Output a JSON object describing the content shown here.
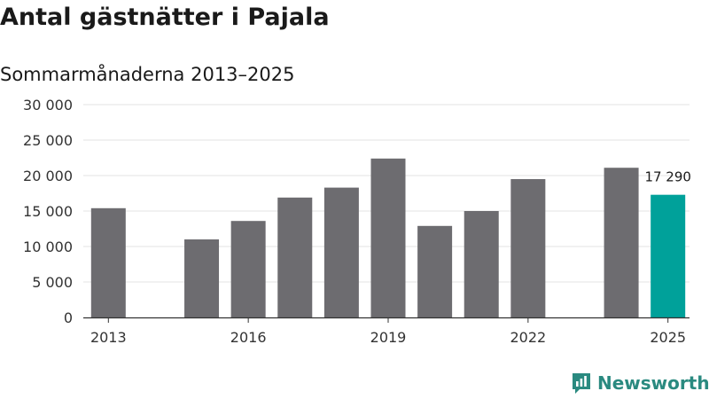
{
  "title": "Antal gästnätter i Pajala",
  "subtitle": "Sommarmånaderna 2013–2025",
  "brand": {
    "name": "Newsworthy",
    "icon": "newsworthy-logo-icon"
  },
  "colors": {
    "bar": "#6d6c70",
    "highlight": "#00a19a",
    "grid": "#e3e3e3",
    "axis": "#333333"
  },
  "chart_data": {
    "type": "bar",
    "title": "Antal gästnätter i Pajala",
    "subtitle": "Sommarmånaderna 2013–2025",
    "xlabel": "",
    "ylabel": "",
    "ylim": [
      0,
      30000
    ],
    "yticks": [
      0,
      5000,
      10000,
      15000,
      20000,
      25000,
      30000
    ],
    "ytick_labels": [
      "0",
      "5 000",
      "10 000",
      "15 000",
      "20 000",
      "25 000",
      "30 000"
    ],
    "categories": [
      "2013",
      "2014",
      "2015",
      "2016",
      "2017",
      "2018",
      "2019",
      "2020",
      "2021",
      "2022",
      "2023",
      "2024",
      "2025"
    ],
    "xtick_labels": [
      "2013",
      "2016",
      "2019",
      "2022",
      "2025"
    ],
    "values": [
      15400,
      null,
      11000,
      13600,
      16900,
      18300,
      22400,
      12900,
      15000,
      19500,
      null,
      21100,
      17290
    ],
    "highlight": "2025",
    "annotations": [
      {
        "category": "2025",
        "text": "17 290"
      }
    ],
    "grid": true,
    "legend": "none"
  }
}
